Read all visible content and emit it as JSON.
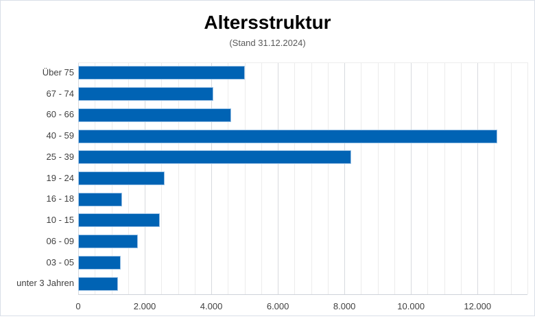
{
  "chart_data": {
    "type": "bar",
    "orientation": "horizontal",
    "title": "Altersstruktur",
    "subtitle": "(Stand 31.12.2024)",
    "categories": [
      "Über 75",
      "67 - 74",
      "60 - 66",
      "40 - 59",
      "25 - 39",
      "19 - 24",
      "16 - 18",
      "10 - 15",
      "06 - 09",
      "03 - 05",
      "unter 3 Jahren"
    ],
    "values": [
      5000,
      4050,
      4600,
      12600,
      8200,
      2600,
      1320,
      2450,
      1800,
      1270,
      1200
    ],
    "xlabel": "",
    "ylabel": "",
    "xlim": [
      0,
      13500
    ],
    "x_major_unit": 2000,
    "x_minor_unit": 500,
    "x_tick_values": [
      0,
      2000,
      4000,
      6000,
      8000,
      10000,
      12000
    ],
    "x_tick_labels": [
      "0",
      "2.000",
      "4.000",
      "6.000",
      "8.000",
      "10.000",
      "12.000"
    ],
    "grid": "vertical, minor every 500, major every 2000",
    "legend": false,
    "colors": {
      "bar_fill": "#0063b4",
      "bar_border": "#9dc3e6",
      "minor_grid": "#ececec",
      "major_grid": "#d7dade",
      "axis_line": "#cdd2da",
      "title_text": "#000000",
      "subtitle_text": "#595959",
      "label_text": "#404040",
      "frame_border": "#d9dee8"
    }
  }
}
